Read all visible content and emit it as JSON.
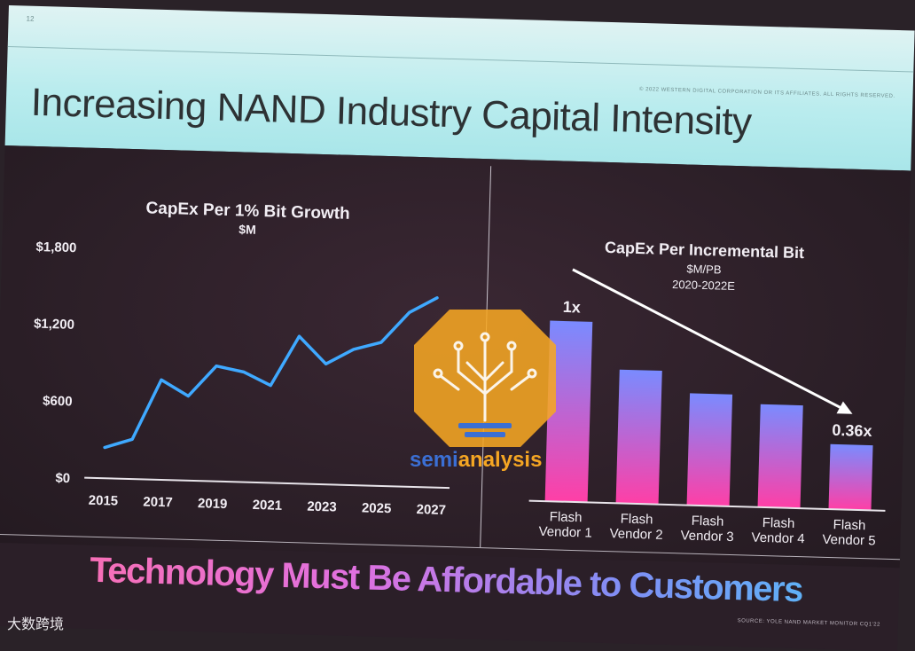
{
  "slide": {
    "number": "12",
    "copyright": "© 2022 WESTERN DIGITAL CORPORATION OR ITS AFFILIATES. ALL RIGHTS RESERVED.",
    "title": "Increasing NAND Industry Capital Intensity",
    "tagline": "Technology Must Be Affordable to Customers",
    "source": "SOURCE:  YOLE NAND MARKET MONITOR CQ1'22"
  },
  "watermark": {
    "text_prefix": "semi",
    "text_suffix": "analysis",
    "colors": {
      "orange": "#f5a623",
      "blue": "#3b6fd4"
    }
  },
  "corner_mark": {
    "text": "大数跨境"
  },
  "colors": {
    "line": "#3fa9ff",
    "bar_top": "#7a8bff",
    "bar_bottom": "#ff3fa6"
  },
  "chart_data": [
    {
      "type": "line",
      "title": "CapEx Per 1% Bit Growth",
      "subtitle": "$M",
      "ylim": [
        0,
        1800
      ],
      "yticks": [
        0,
        600,
        1200,
        1800
      ],
      "ytick_labels": [
        "$0",
        "$600",
        "$1,200",
        "$1,800"
      ],
      "xticks": [
        2015,
        2017,
        2019,
        2021,
        2023,
        2025,
        2027
      ],
      "xtick_labels": [
        "2015",
        "2017",
        "2019",
        "2021",
        "2023",
        "2025",
        "2027"
      ],
      "x": [
        2015,
        2016,
        2017,
        2018,
        2019,
        2020,
        2021,
        2022,
        2023,
        2024,
        2025,
        2026,
        2027
      ],
      "y": [
        240,
        310,
        780,
        660,
        900,
        860,
        760,
        1150,
        940,
        1060,
        1120,
        1360,
        1480
      ],
      "grid": false
    },
    {
      "type": "bar",
      "title": "CapEx Per Incremental Bit",
      "subtitle_lines": [
        "$M/PB",
        "2020-2022E"
      ],
      "categories": [
        [
          "Flash",
          "Vendor 1"
        ],
        [
          "Flash",
          "Vendor 2"
        ],
        [
          "Flash",
          "Vendor 3"
        ],
        [
          "Flash",
          "Vendor 4"
        ],
        [
          "Flash",
          "Vendor 5"
        ]
      ],
      "values": [
        1.0,
        0.74,
        0.62,
        0.57,
        0.36
      ],
      "ylim": [
        0,
        1.1
      ],
      "data_labels": [
        "1x",
        "",
        "",
        "",
        "0.36x"
      ],
      "annotation": "downward trend arrow"
    }
  ]
}
